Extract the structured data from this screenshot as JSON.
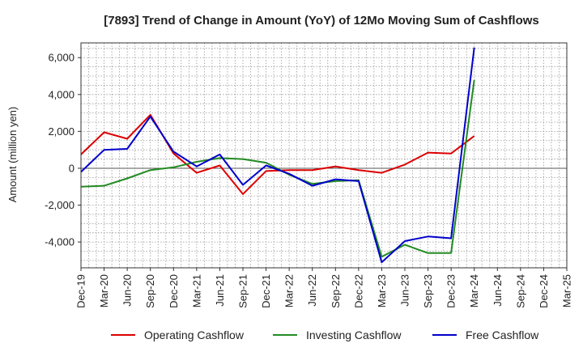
{
  "chart_data": {
    "type": "line",
    "title": "[7893]  Trend of Change in Amount (YoY) of 12Mo Moving Sum of Cashflows",
    "xlabel": "",
    "ylabel": "Amount (million yen)",
    "ylim": [
      -5400,
      6800
    ],
    "yticks": [
      -4000,
      -2000,
      0,
      2000,
      4000,
      6000
    ],
    "ytick_labels": [
      "-4,000",
      "-2,000",
      "0",
      "2,000",
      "4,000",
      "6,000"
    ],
    "grid": true,
    "legend_position": "bottom",
    "categories": [
      "Dec-19",
      "Mar-20",
      "Jun-20",
      "Sep-20",
      "Dec-20",
      "Mar-21",
      "Jun-21",
      "Sep-21",
      "Dec-21",
      "Mar-22",
      "Jun-22",
      "Sep-22",
      "Dec-22",
      "Mar-23",
      "Jun-23",
      "Sep-23",
      "Dec-23",
      "Mar-24",
      "Jun-24",
      "Sep-24",
      "Dec-24",
      "Mar-25"
    ],
    "series": [
      {
        "name": "Operating Cashflow",
        "color": "#dd0000",
        "values": [
          750,
          1950,
          1600,
          2900,
          800,
          -250,
          150,
          -1400,
          -150,
          -100,
          -100,
          100,
          -100,
          -250,
          200,
          850,
          800,
          1750,
          null,
          null,
          null,
          null
        ]
      },
      {
        "name": "Investing Cashflow",
        "color": "#228b22",
        "values": [
          -1000,
          -950,
          -550,
          -100,
          50,
          350,
          550,
          500,
          300,
          -350,
          -850,
          -700,
          -650,
          -4800,
          -4150,
          -4600,
          -4600,
          4800,
          null,
          null,
          null,
          null
        ]
      },
      {
        "name": "Free Cashflow",
        "color": "#0000cc",
        "values": [
          -200,
          1000,
          1050,
          2800,
          900,
          100,
          750,
          -900,
          150,
          -300,
          -950,
          -600,
          -700,
          -5100,
          -3950,
          -3700,
          -3800,
          6550,
          null,
          null,
          null,
          null
        ]
      }
    ]
  }
}
